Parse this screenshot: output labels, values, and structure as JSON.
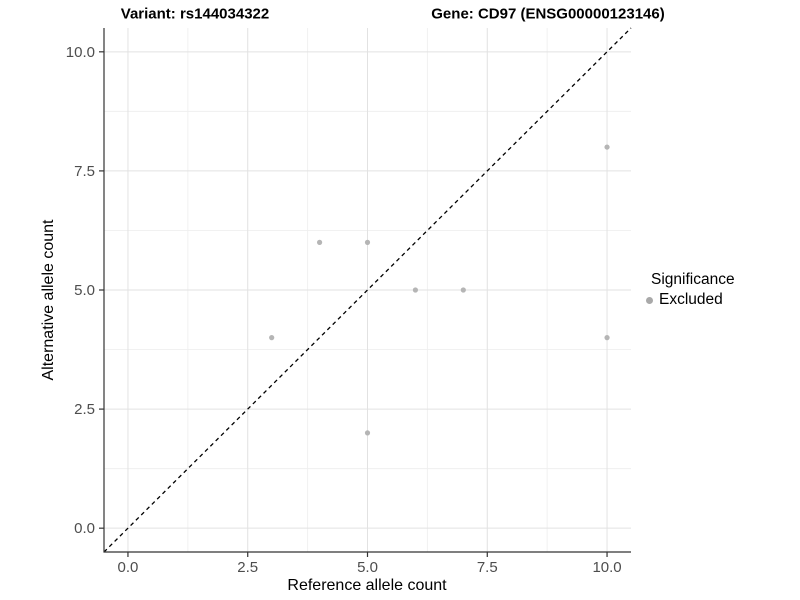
{
  "chart_data": {
    "type": "scatter",
    "title_left": "Variant: rs144034322",
    "title_right": "Gene: CD97 (ENSG00000123146)",
    "xlabel": "Reference allele count",
    "ylabel": "Alternative allele count",
    "xlim": [
      -0.5,
      10.5
    ],
    "ylim": [
      -0.5,
      10.5
    ],
    "x_ticks": [
      0.0,
      2.5,
      5.0,
      7.5,
      10.0
    ],
    "y_ticks": [
      0.0,
      2.5,
      5.0,
      7.5,
      10.0
    ],
    "x_minor_ticks": [
      1.25,
      3.75,
      6.25,
      8.75
    ],
    "y_minor_ticks": [
      1.25,
      3.75,
      6.25,
      8.75
    ],
    "grid": "on",
    "series": [
      {
        "name": "Excluded",
        "color": "#b5b5b5",
        "points": [
          [
            3,
            4
          ],
          [
            4,
            6
          ],
          [
            5,
            2
          ],
          [
            5,
            6
          ],
          [
            6,
            5
          ],
          [
            7,
            5
          ],
          [
            10,
            4
          ],
          [
            10,
            8
          ]
        ]
      }
    ],
    "reference_line": {
      "kind": "identity y=x",
      "style": "dashed",
      "color": "#000000"
    },
    "legend": {
      "title": "Significance",
      "position": "right",
      "items": [
        {
          "label": "Excluded",
          "color": "#a9a9a9"
        }
      ]
    }
  },
  "style_colors": {
    "grid_major": "#e2e2e2",
    "grid_minor": "#efefef",
    "axis_line": "#333333",
    "tick_mark": "#333333",
    "tick_label": "#4d4d4d"
  }
}
